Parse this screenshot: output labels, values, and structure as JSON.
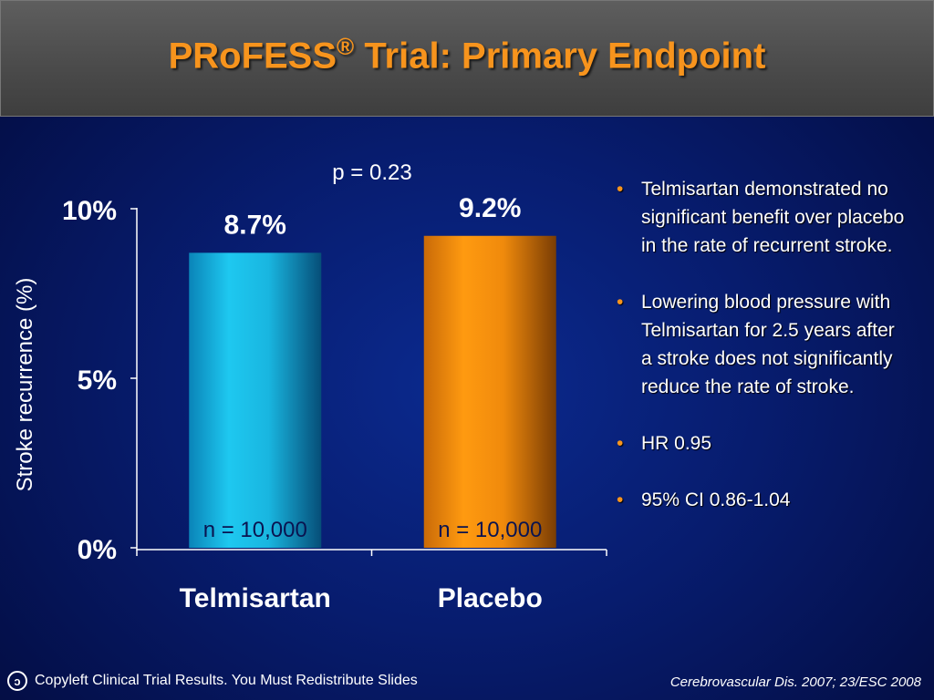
{
  "header": {
    "title_main": "PRoFESS",
    "title_sup": "®",
    "title_rest": " Trial: Primary Endpoint"
  },
  "chart_data": {
    "type": "bar",
    "categories": [
      "Telmisartan",
      "Placebo"
    ],
    "values": [
      8.7,
      9.2
    ],
    "value_labels": [
      "8.7%",
      "9.2%"
    ],
    "n_labels": [
      "n = 10,000",
      "n = 10,000"
    ],
    "bar_colors": [
      "#1ec8f0",
      "#f7941d"
    ],
    "ylabel": "Stroke recurrence (%)",
    "ylim": [
      0,
      10
    ],
    "yticks": [
      0,
      5,
      10
    ],
    "ytick_labels": [
      "0%",
      "5%",
      "10%"
    ],
    "annotation": "p = 0.23"
  },
  "bullets": [
    "Telmisartan demonstrated no significant benefit over placebo in the rate of recurrent stroke.",
    "Lowering blood pressure with Telmisartan for 2.5 years after a stroke does not significantly reduce the rate of stroke.",
    "HR 0.95",
    "95% CI 0.86-1.04"
  ],
  "footer": {
    "license_icon": "copyleft-icon",
    "license_symbol": "ɔ",
    "license_text": "Copyleft Clinical Trial Results. You Must Redistribute Slides",
    "citation": "Cerebrovascular Dis. 2007; 23/ESC 2008"
  }
}
